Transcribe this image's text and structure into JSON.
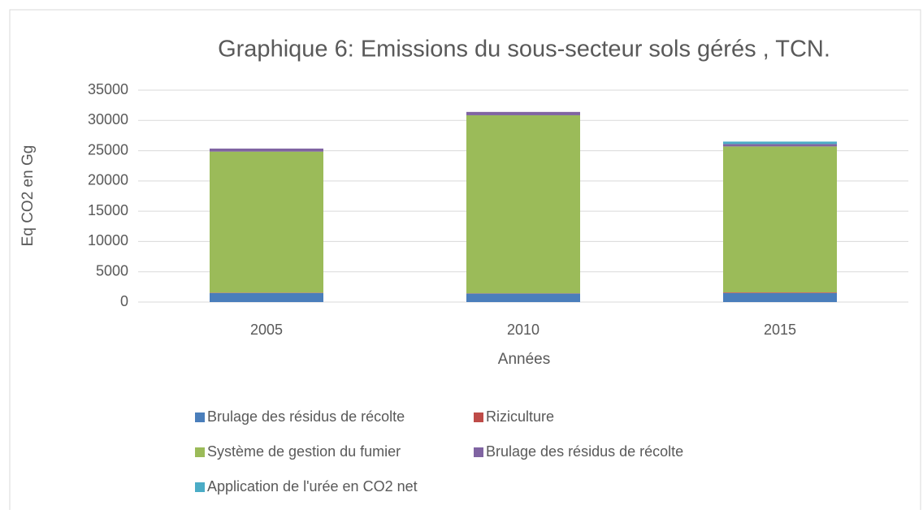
{
  "chart_data": {
    "type": "stacked_bar",
    "title": "Graphique 6: Emissions du sous-secteur sols gérés , TCN.",
    "x_label": "Années",
    "y_label": "Eq CO2 en Gg",
    "categories": [
      "2005",
      "2010",
      "2015"
    ],
    "series": [
      {
        "name": "Brulage des résidus de récolte",
        "color": "#4a7ebb",
        "values": [
          1500,
          1400,
          1500
        ]
      },
      {
        "name": "Riziculture",
        "color": "#be4b48",
        "values": [
          50,
          50,
          100
        ]
      },
      {
        "name": "Système de gestion du fumier",
        "color": "#9bbb59",
        "values": [
          23300,
          29400,
          24100
        ]
      },
      {
        "name": "Brulage des résidus de récolte",
        "color": "#8064a2",
        "values": [
          500,
          550,
          400
        ]
      },
      {
        "name": "Application de l'urée en CO2 net",
        "color": "#4bacc6",
        "values": [
          0,
          0,
          400
        ]
      }
    ],
    "ylim": [
      0,
      35000
    ],
    "yticks": [
      0,
      5000,
      10000,
      15000,
      20000,
      25000,
      30000,
      35000
    ],
    "grid": true
  }
}
